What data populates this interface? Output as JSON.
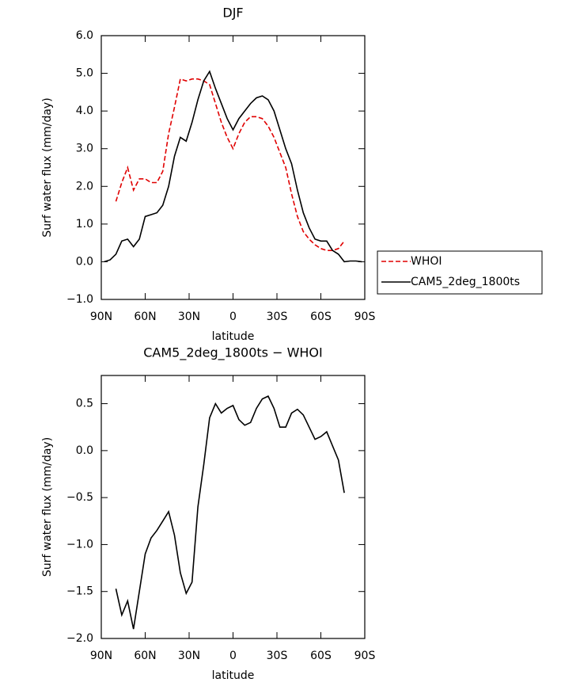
{
  "chart_data": [
    {
      "type": "line",
      "title": "DJF",
      "xlabel": "latitude",
      "ylabel": "Surf water flux (mm/day)",
      "x": [
        88,
        84,
        80,
        76,
        72,
        68,
        64,
        60,
        56,
        52,
        48,
        44,
        40,
        36,
        32,
        28,
        24,
        20,
        16,
        12,
        8,
        4,
        0,
        -4,
        -8,
        -12,
        -16,
        -20,
        -24,
        -28,
        -32,
        -36,
        -40,
        -44,
        -48,
        -52,
        -56,
        -60,
        -64,
        -68,
        -72,
        -76,
        -80,
        -84,
        -88
      ],
      "series": [
        {
          "name": "WHOI",
          "color": "#e00000",
          "dash": true,
          "values": [
            null,
            null,
            1.6,
            2.1,
            2.5,
            1.9,
            2.2,
            2.2,
            2.1,
            2.1,
            2.4,
            3.4,
            4.1,
            4.85,
            4.8,
            4.85,
            4.85,
            4.8,
            4.7,
            4.2,
            3.7,
            3.3,
            3.0,
            3.4,
            3.7,
            3.85,
            3.85,
            3.8,
            3.6,
            3.3,
            2.9,
            2.5,
            1.8,
            1.2,
            0.8,
            0.6,
            0.45,
            0.35,
            0.3,
            0.3,
            0.35,
            0.55,
            null,
            null,
            null
          ]
        },
        {
          "name": "CAM5_2deg_1800ts",
          "color": "#000000",
          "dash": false,
          "values": [
            0.0,
            0.05,
            0.2,
            0.55,
            0.6,
            0.4,
            0.6,
            1.2,
            1.25,
            1.3,
            1.5,
            2.0,
            2.8,
            3.3,
            3.2,
            3.7,
            4.3,
            4.8,
            5.05,
            4.6,
            4.2,
            3.8,
            3.5,
            3.8,
            4.0,
            4.2,
            4.35,
            4.4,
            4.3,
            4.0,
            3.5,
            3.0,
            2.6,
            1.9,
            1.3,
            0.9,
            0.6,
            0.55,
            0.55,
            0.3,
            0.2,
            0.0,
            0.02,
            0.02,
            0.0
          ]
        }
      ],
      "xlim": [
        90,
        -90
      ],
      "xticks": [
        {
          "value": 90,
          "label": "90N"
        },
        {
          "value": 60,
          "label": "60N"
        },
        {
          "value": 30,
          "label": "30N"
        },
        0,
        {
          "value": -30,
          "label": "30S"
        },
        {
          "value": -60,
          "label": "60S"
        },
        {
          "value": -90,
          "label": "90S"
        }
      ],
      "ylim": [
        -1,
        6
      ],
      "yticks": [
        {
          "value": -1,
          "label": "−1.0"
        },
        {
          "value": 0,
          "label": "0.0"
        },
        {
          "value": 1,
          "label": "1.0"
        },
        {
          "value": 2,
          "label": "2.0"
        },
        {
          "value": 3,
          "label": "3.0"
        },
        {
          "value": 4,
          "label": "4.0"
        },
        {
          "value": 5,
          "label": "5.0"
        },
        {
          "value": 6,
          "label": "6.0"
        }
      ],
      "legend": "right"
    },
    {
      "type": "line",
      "title": "CAM5_2deg_1800ts − WHOI",
      "xlabel": "latitude",
      "ylabel": "Surf water flux (mm/day)",
      "x": [
        80,
        76,
        72,
        68,
        64,
        60,
        56,
        52,
        48,
        44,
        40,
        36,
        32,
        28,
        24,
        20,
        16,
        12,
        8,
        4,
        0,
        -4,
        -8,
        -12,
        -16,
        -20,
        -24,
        -28,
        -32,
        -36,
        -40,
        -44,
        -48,
        -52,
        -56,
        -60,
        -64,
        -68,
        -72,
        -76
      ],
      "series": [
        {
          "color": "#000000",
          "values": [
            -1.47,
            -1.75,
            -1.6,
            -1.9,
            -1.5,
            -1.1,
            -0.93,
            -0.85,
            -0.75,
            -0.65,
            -0.9,
            -1.3,
            -1.52,
            -1.4,
            -0.6,
            -0.15,
            0.35,
            0.5,
            0.4,
            0.45,
            0.48,
            0.33,
            0.27,
            0.3,
            0.45,
            0.55,
            0.58,
            0.45,
            0.25,
            0.25,
            0.4,
            0.44,
            0.38,
            0.25,
            0.12,
            0.15,
            0.2,
            0.05,
            -0.1,
            -0.45
          ]
        }
      ],
      "xlim": [
        90,
        -90
      ],
      "xticks": [
        {
          "value": 90,
          "label": "90N"
        },
        {
          "value": 60,
          "label": "60N"
        },
        {
          "value": 30,
          "label": "30N"
        },
        0,
        {
          "value": -30,
          "label": "30S"
        },
        {
          "value": -60,
          "label": "60S"
        },
        {
          "value": -90,
          "label": "90S"
        }
      ],
      "ylim": [
        -2,
        0.8
      ],
      "yticks": [
        {
          "value": -2,
          "label": "−2.0"
        },
        {
          "value": -1.5,
          "label": "−1.5"
        },
        {
          "value": -1,
          "label": "−1.0"
        },
        {
          "value": -0.5,
          "label": "−0.5"
        },
        {
          "value": 0,
          "label": "0.0"
        },
        0.5
      ]
    }
  ]
}
